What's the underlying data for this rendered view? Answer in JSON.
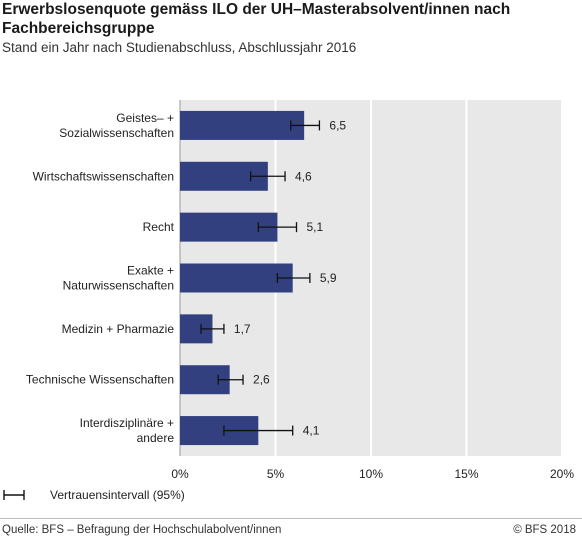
{
  "header": {
    "title": "Erwerbslosenquote gemäss ILO der UH–Masterabsolvent/innen nach Fachbereichsgruppe",
    "subtitle": "Stand ein Jahr nach Studienabschluss, Abschlussjahr 2016"
  },
  "legend": {
    "label": "Vertrauensintervall (95%)"
  },
  "footer": {
    "source": "Quelle: BFS – Befragung der Hochschulabolvent/innen",
    "copyright": "© BFS 2018"
  },
  "colors": {
    "bar": "#33407f",
    "plot_background": "#e8e8e8",
    "grid": "#ffffff",
    "error_bar": "#111111"
  },
  "chart_data": {
    "type": "bar",
    "orientation": "horizontal",
    "categories": [
      [
        "Geistes– +",
        "Sozialwissenschaften"
      ],
      [
        "Wirtschaftswissenschaften"
      ],
      [
        "Recht"
      ],
      [
        "Exakte +",
        "Naturwissenschaften"
      ],
      [
        "Medizin + Pharmazie"
      ],
      [
        "Technische Wissenschaften"
      ],
      [
        "Interdisziplinäre +",
        "andere"
      ]
    ],
    "values": [
      6.5,
      4.6,
      5.1,
      5.9,
      1.7,
      2.6,
      4.1
    ],
    "value_labels": [
      "6,5",
      "4,6",
      "5,1",
      "5,9",
      "1,7",
      "2,6",
      "4,1"
    ],
    "confidence_interval_95": [
      [
        5.8,
        7.3
      ],
      [
        3.7,
        5.5
      ],
      [
        4.1,
        6.1
      ],
      [
        5.1,
        6.8
      ],
      [
        1.1,
        2.3
      ],
      [
        2.0,
        3.3
      ],
      [
        2.3,
        5.9
      ]
    ],
    "xlim": [
      0,
      20
    ],
    "xticks": [
      0,
      5,
      10,
      15,
      20
    ],
    "xtick_labels": [
      "0%",
      "5%",
      "10%",
      "15%",
      "20%"
    ],
    "xlabel": "",
    "ylabel": "",
    "grid": true,
    "legend_position": "bottom-left"
  }
}
